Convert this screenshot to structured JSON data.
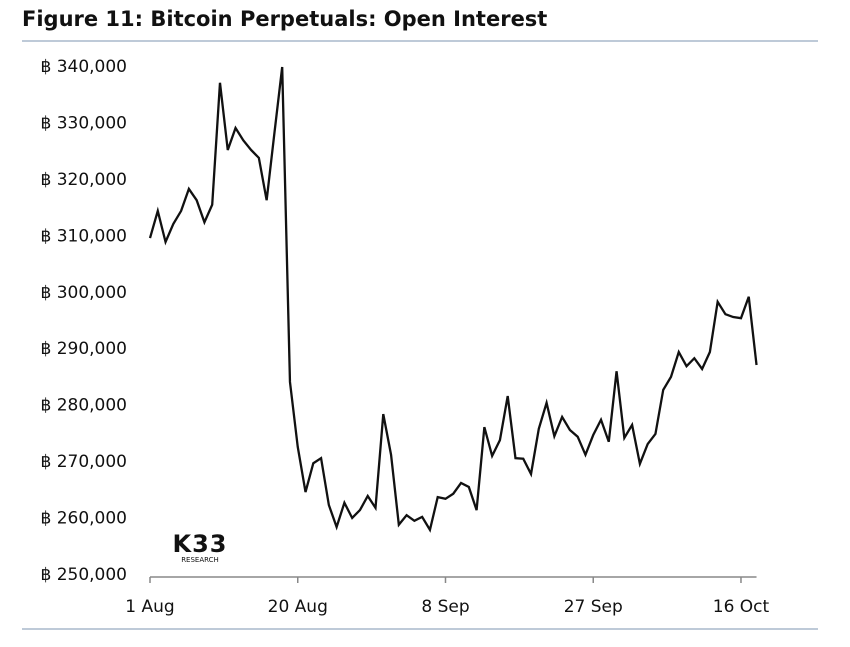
{
  "chart_data": {
    "type": "line",
    "title": "Figure 11: Bitcoin Perpetuals: Open Interest",
    "logo": {
      "text": "K33",
      "subtext": "RESEARCH"
    },
    "categories": [
      "1 Aug",
      null,
      null,
      null,
      null,
      null,
      null,
      null,
      null,
      null,
      null,
      null,
      null,
      null,
      null,
      null,
      null,
      null,
      null,
      "20 Aug",
      null,
      null,
      null,
      null,
      null,
      null,
      null,
      null,
      null,
      null,
      null,
      null,
      null,
      null,
      null,
      null,
      null,
      null,
      "8 Sep",
      null,
      null,
      null,
      null,
      null,
      null,
      null,
      null,
      null,
      null,
      null,
      null,
      null,
      null,
      null,
      null,
      null,
      null,
      "27 Sep",
      null,
      null,
      null,
      null,
      null,
      null,
      null,
      null,
      null,
      null,
      null,
      null,
      null,
      null,
      null,
      null,
      null,
      null,
      "16 Oct",
      null,
      null
    ],
    "series": [
      {
        "name": "Open Interest",
        "color": "#111111",
        "values": [
          309700,
          314500,
          309000,
          312200,
          314500,
          318400,
          316400,
          312500,
          315600,
          337200,
          325300,
          329200,
          327000,
          325300,
          323900,
          316400,
          328300,
          340000,
          284200,
          272700,
          264700,
          269800,
          270700,
          262400,
          258500,
          262800,
          260100,
          261500,
          264000,
          261900,
          278500,
          271300,
          258900,
          260600,
          259600,
          260300,
          258000,
          263800,
          263500,
          264400,
          266300,
          265600,
          261500,
          276200,
          271100,
          273900,
          281700,
          270700,
          270600,
          267900,
          275900,
          280500,
          274600,
          278000,
          275700,
          274500,
          271300,
          274800,
          277500,
          273600,
          286100,
          274300,
          276600,
          269700,
          273200,
          275000,
          282800,
          285100,
          289500,
          287000,
          288400,
          286500,
          289500,
          298400,
          296200,
          295700,
          295500,
          299300,
          287200
        ]
      }
    ],
    "ylim": [
      250000,
      340000
    ],
    "yticks": [
      {
        "value": 250000,
        "label": "฿ 250,000"
      },
      {
        "value": 260000,
        "label": "฿ 260,000"
      },
      {
        "value": 270000,
        "label": "฿ 270,000"
      },
      {
        "value": 280000,
        "label": "฿ 280,000"
      },
      {
        "value": 290000,
        "label": "฿ 290,000"
      },
      {
        "value": 300000,
        "label": "฿ 300,000"
      },
      {
        "value": 310000,
        "label": "฿ 310,000"
      },
      {
        "value": 320000,
        "label": "฿ 320,000"
      },
      {
        "value": 330000,
        "label": "฿ 330,000"
      },
      {
        "value": 340000,
        "label": "฿ 340,000"
      }
    ],
    "grid": false
  }
}
